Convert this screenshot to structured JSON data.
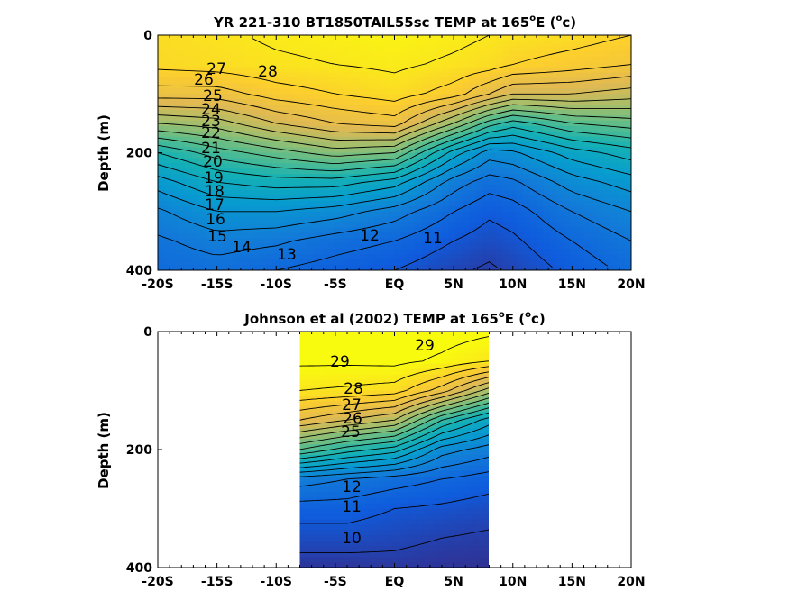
{
  "chart_data": [
    {
      "type": "heatmap",
      "title": "YR 221-310 BT1850TAIL55sc TEMP at 165",
      "title_degree": "o",
      "title_rest": "E (",
      "title_unit_sup": "o",
      "title_unit_end": "c)",
      "xlabel": "",
      "ylabel": "Depth (m)",
      "x_ticks": [
        "-20S",
        "-15S",
        "-10S",
        "-5S",
        "EQ",
        "5N",
        "10N",
        "15N",
        "20N"
      ],
      "x_values": [
        -20,
        -15,
        -10,
        -5,
        0,
        5,
        10,
        15,
        20
      ],
      "y_ticks": [
        "0",
        "200",
        "400"
      ],
      "y_values": [
        0,
        200,
        400
      ],
      "xlim": [
        -20,
        20
      ],
      "ylim": [
        0,
        400
      ],
      "y_reversed": true,
      "data_extent": [
        -20,
        20
      ],
      "colormap": "parula",
      "color_range": [
        9,
        29
      ],
      "profile_depths": [
        0,
        50,
        100,
        150,
        200,
        250,
        300,
        350,
        400
      ],
      "columns": [
        {
          "lat": -20,
          "temps": [
            27.5,
            27.3,
            25.5,
            22.0,
            18.0,
            15.5,
            13.8,
            12.8,
            12.2
          ]
        },
        {
          "lat": -15,
          "temps": [
            27.8,
            27.5,
            25.5,
            22.5,
            19.5,
            17.0,
            15.0,
            13.5,
            12.5
          ]
        },
        {
          "lat": -10,
          "temps": [
            28.2,
            27.8,
            26.5,
            24.0,
            20.5,
            17.5,
            15.0,
            13.2,
            12.0
          ]
        },
        {
          "lat": -5,
          "temps": [
            28.4,
            28.0,
            27.0,
            25.0,
            21.5,
            17.5,
            14.5,
            12.5,
            11.5
          ]
        },
        {
          "lat": 0,
          "temps": [
            28.6,
            28.2,
            27.5,
            25.5,
            21.0,
            16.5,
            13.5,
            12.0,
            11.0
          ]
        },
        {
          "lat": 5,
          "temps": [
            28.3,
            27.8,
            26.5,
            22.0,
            16.5,
            13.5,
            12.0,
            11.0,
            10.2
          ]
        },
        {
          "lat": 8,
          "temps": [
            28.0,
            27.5,
            25.0,
            19.5,
            14.5,
            12.5,
            11.2,
            10.5,
            9.8
          ]
        },
        {
          "lat": 10,
          "temps": [
            27.8,
            27.0,
            24.0,
            18.5,
            14.8,
            12.8,
            11.5,
            10.8,
            10.2
          ]
        },
        {
          "lat": 15,
          "temps": [
            27.5,
            26.5,
            24.0,
            20.0,
            16.5,
            14.5,
            13.0,
            12.0,
            11.3
          ]
        },
        {
          "lat": 20,
          "temps": [
            27.0,
            26.0,
            23.5,
            20.5,
            17.5,
            15.5,
            14.0,
            13.0,
            12.3
          ]
        }
      ],
      "contour_labels": [
        "28",
        "27",
        "26",
        "25",
        "24",
        "23",
        "22",
        "21",
        "20",
        "19",
        "18",
        "17",
        "16",
        "15",
        "14",
        "13",
        "12",
        "11"
      ]
    },
    {
      "type": "heatmap",
      "title": "Johnson et al (2002) TEMP at 165",
      "title_degree": "o",
      "title_rest": "E (",
      "title_unit_sup": "o",
      "title_unit_end": "c)",
      "xlabel": "",
      "ylabel": "Depth (m)",
      "x_ticks": [
        "-20S",
        "-15S",
        "-10S",
        "-5S",
        "EQ",
        "5N",
        "10N",
        "15N",
        "20N"
      ],
      "x_values": [
        -20,
        -15,
        -10,
        -5,
        0,
        5,
        10,
        15,
        20
      ],
      "y_ticks": [
        "0",
        "200",
        "400"
      ],
      "y_values": [
        0,
        200,
        400
      ],
      "xlim": [
        -20,
        20
      ],
      "ylim": [
        0,
        400
      ],
      "y_reversed": true,
      "data_extent": [
        -8,
        8
      ],
      "colormap": "parula",
      "color_range": [
        9,
        29
      ],
      "profile_depths": [
        0,
        50,
        100,
        150,
        200,
        250,
        300,
        350,
        400
      ],
      "columns": [
        {
          "lat": -8,
          "temps": [
            29.5,
            29.2,
            28.0,
            25.0,
            20.0,
            13.5,
            11.5,
            10.5,
            9.5
          ]
        },
        {
          "lat": -4,
          "temps": [
            29.5,
            29.2,
            27.8,
            24.0,
            18.5,
            13.0,
            11.5,
            10.5,
            9.5
          ]
        },
        {
          "lat": 0,
          "temps": [
            29.7,
            29.3,
            27.5,
            23.0,
            17.5,
            12.5,
            11.0,
            10.3,
            9.6
          ]
        },
        {
          "lat": 4,
          "temps": [
            29.5,
            28.8,
            25.5,
            19.0,
            14.5,
            12.0,
            10.8,
            10.0,
            9.4
          ]
        },
        {
          "lat": 8,
          "temps": [
            29.2,
            28.0,
            22.5,
            16.5,
            13.5,
            11.5,
            10.5,
            9.8,
            9.3
          ]
        }
      ],
      "contour_labels": [
        "29",
        "29",
        "28",
        "27",
        "26",
        "25",
        "12",
        "11",
        "10"
      ]
    }
  ]
}
